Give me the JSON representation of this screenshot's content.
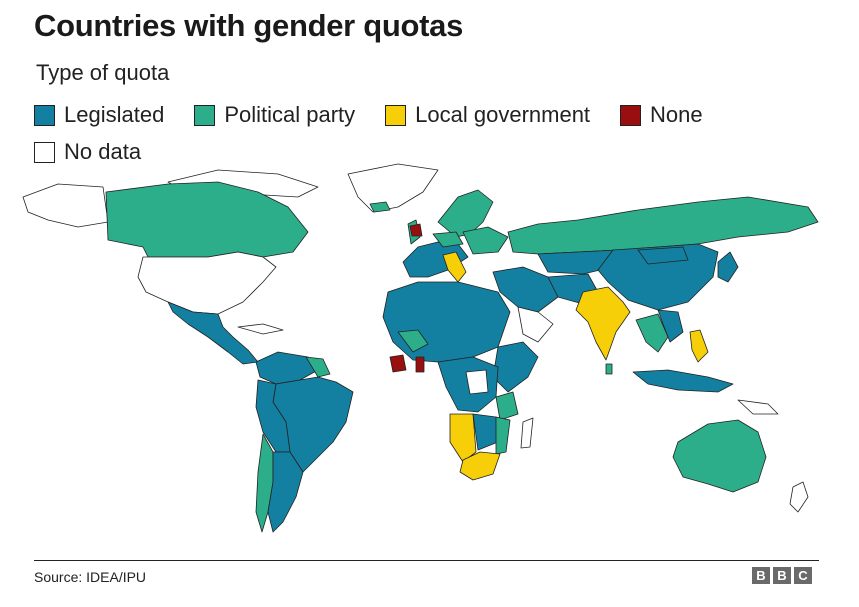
{
  "title": "Countries with gender quotas",
  "subtitle": "Type of quota",
  "legend": [
    {
      "label": "Legislated",
      "color": "#1380a1"
    },
    {
      "label": "Political party",
      "color": "#2cae8a"
    },
    {
      "label": "Local government",
      "color": "#f7cf09"
    },
    {
      "label": "None",
      "color": "#990f0f"
    },
    {
      "label": "No data",
      "color": "#ffffff"
    }
  ],
  "source": "Source: IDEA/IPU",
  "logo": [
    "B",
    "B",
    "C"
  ],
  "map": {
    "region_colors": {
      "legislated": "#1380a1",
      "political_party": "#2cae8a",
      "local_government": "#f7cf09",
      "none": "#990f0f",
      "no_data": "#ffffff"
    }
  }
}
